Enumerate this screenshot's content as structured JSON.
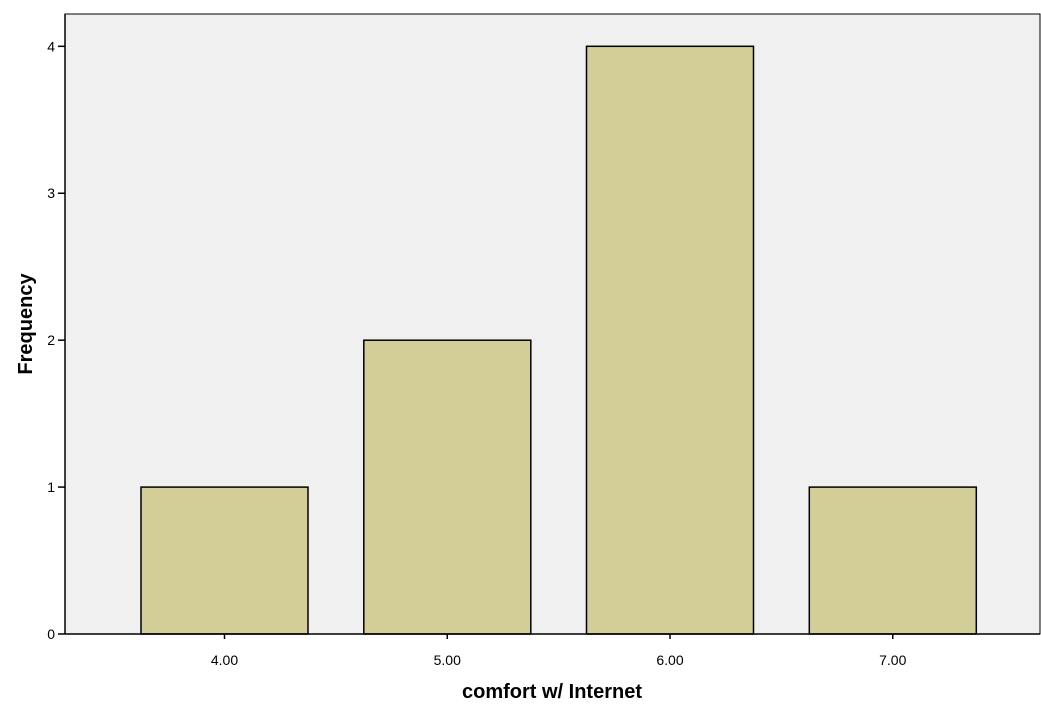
{
  "chart_data": {
    "type": "bar",
    "title": "",
    "xlabel": "comfort w/ Internet",
    "ylabel": "Frequency",
    "categories": [
      "4.00",
      "5.00",
      "6.00",
      "7.00"
    ],
    "values": [
      1,
      2,
      4,
      1
    ],
    "ylim": [
      0,
      4.22
    ],
    "yticks": [
      "0",
      "1",
      "2",
      "3",
      "4"
    ],
    "grid": false,
    "legend": "none",
    "colors": {
      "plot_background": "#f0f0f0",
      "bar_fill": "#d3ce97",
      "bar_stroke": "#000000",
      "axis": "#000000"
    }
  }
}
